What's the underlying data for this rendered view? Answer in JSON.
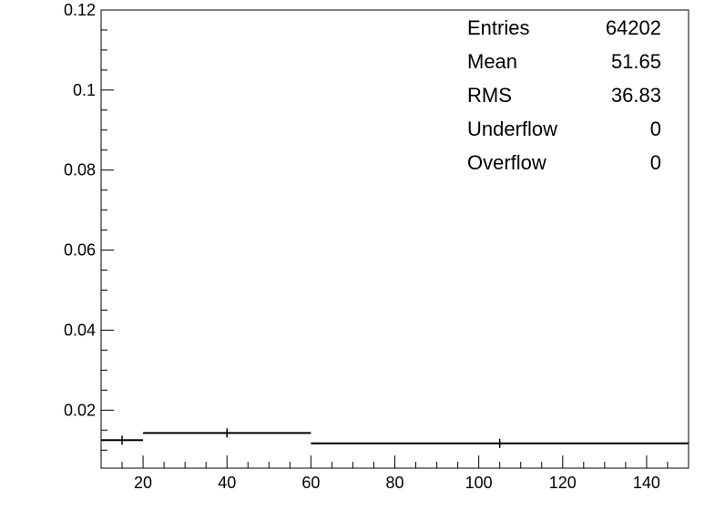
{
  "chart_data": {
    "type": "histogram",
    "title": "",
    "xlabel": "",
    "ylabel": "",
    "xlim": [
      10,
      150
    ],
    "ylim": [
      0.0055,
      0.12
    ],
    "x_ticks": [
      20,
      40,
      60,
      80,
      100,
      120,
      140
    ],
    "y_ticks": [
      0.02,
      0.04,
      0.06,
      0.08,
      0.1,
      0.12
    ],
    "x_tick_labels": [
      "20",
      "40",
      "60",
      "80",
      "100",
      "120",
      "140"
    ],
    "y_tick_labels": [
      "0.02",
      "0.04",
      "0.06",
      "0.08",
      "0.1",
      "0.12"
    ],
    "grid": false,
    "legend": "none",
    "bins": [
      {
        "x_low": 10,
        "x_high": 20,
        "y": 0.0125,
        "center": 15
      },
      {
        "x_low": 20,
        "x_high": 60,
        "y": 0.0143,
        "center": 40
      },
      {
        "x_low": 60,
        "x_high": 150,
        "y": 0.0117,
        "center": 105
      }
    ],
    "stats_box": [
      {
        "label": "Entries",
        "value": "64202"
      },
      {
        "label": "Mean",
        "value": "51.65"
      },
      {
        "label": "RMS",
        "value": "36.83"
      },
      {
        "label": "Underflow",
        "value": "0"
      },
      {
        "label": "Overflow",
        "value": "0"
      }
    ]
  }
}
